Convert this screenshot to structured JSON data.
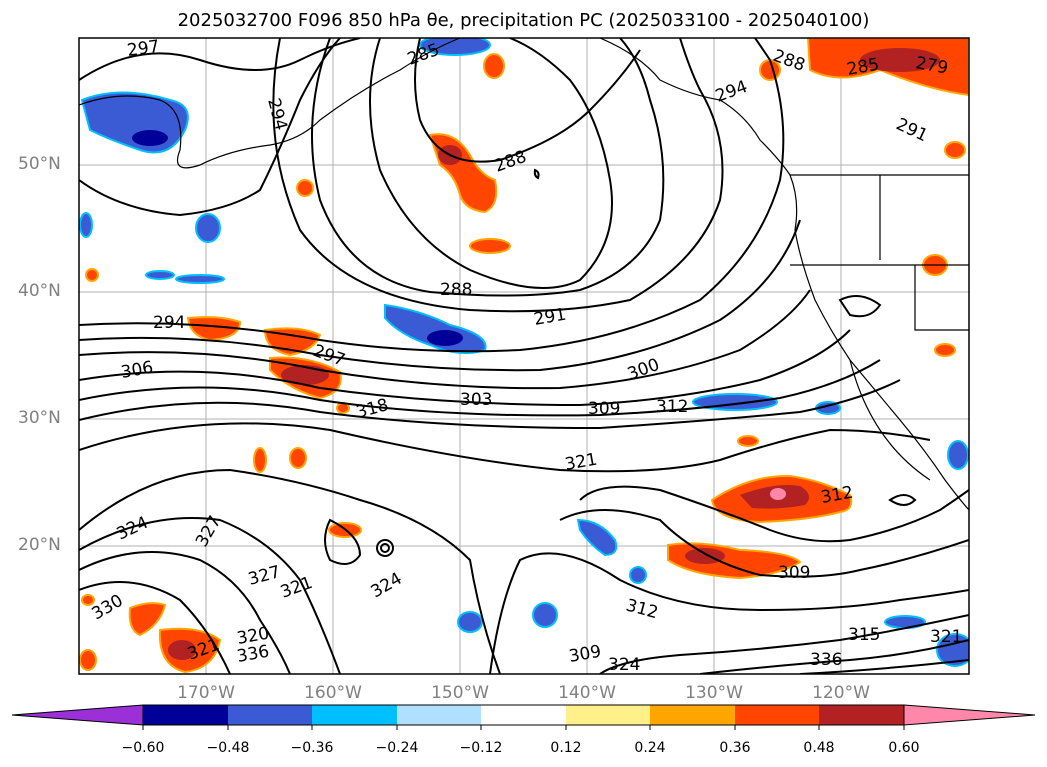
{
  "title": "2025032700 F096 850 hPa θe, precipitation PC (2025033100 - 2025040100)",
  "map": {
    "lat_labels": [
      "50°N",
      "40°N",
      "30°N",
      "20°N"
    ],
    "lon_labels": [
      "170°W",
      "160°W",
      "150°W",
      "140°W",
      "130°W",
      "120°W"
    ],
    "contour_labels": [
      "297",
      "294",
      "285",
      "288",
      "294",
      "291",
      "285",
      "288",
      "279",
      "288",
      "291",
      "294",
      "297",
      "300",
      "303",
      "306",
      "309",
      "312",
      "318",
      "321",
      "324",
      "327",
      "327",
      "321",
      "309",
      "312",
      "330",
      "321",
      "320",
      "336",
      "324",
      "315",
      "321",
      "309",
      "324",
      "336",
      "312"
    ]
  },
  "colorbar": {
    "ticks": [
      "−0.60",
      "−0.48",
      "−0.36",
      "−0.24",
      "−0.12",
      "0.12",
      "0.24",
      "0.36",
      "0.48",
      "0.60"
    ],
    "colors": {
      "under": "#9b30d9",
      "bins": [
        "#000099",
        "#3b5bd5",
        "#00bfff",
        "#b0e0ff",
        "#ffffff",
        "#fff08a",
        "#ffa500",
        "#ff4500",
        "#b22222",
        "#ff88aa"
      ],
      "over": "#ff88aa"
    }
  }
}
